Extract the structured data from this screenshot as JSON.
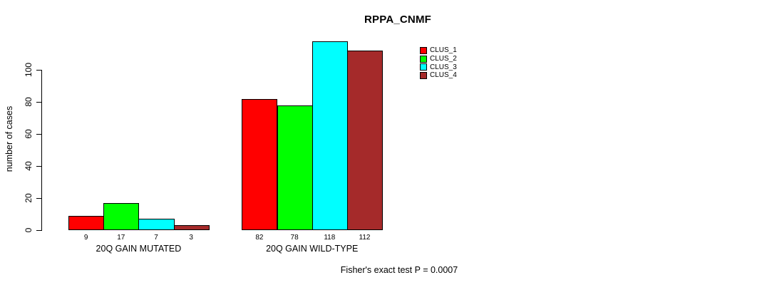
{
  "chart_data": {
    "type": "bar",
    "title": "RPPA_CNMF",
    "ylabel": "number of cases",
    "xlabel": "",
    "categories": [
      "20Q GAIN MUTATED",
      "20Q GAIN WILD-TYPE"
    ],
    "series": [
      {
        "name": "CLUS_1",
        "color": "#FF0000",
        "values": [
          9,
          82
        ]
      },
      {
        "name": "CLUS_2",
        "color": "#00FF00",
        "values": [
          17,
          78
        ]
      },
      {
        "name": "CLUS_3",
        "color": "#00FFFF",
        "values": [
          7,
          118
        ]
      },
      {
        "name": "CLUS_4",
        "color": "#A52A2A",
        "values": [
          3,
          112
        ]
      }
    ],
    "yticks": [
      0,
      20,
      40,
      60,
      80,
      100
    ],
    "ylim": [
      0,
      124
    ],
    "grid": false,
    "bar_value_labels_shown": true,
    "legend_position": "top-right"
  },
  "footer": {
    "text": "Fisher's exact test P = 0.0007"
  }
}
